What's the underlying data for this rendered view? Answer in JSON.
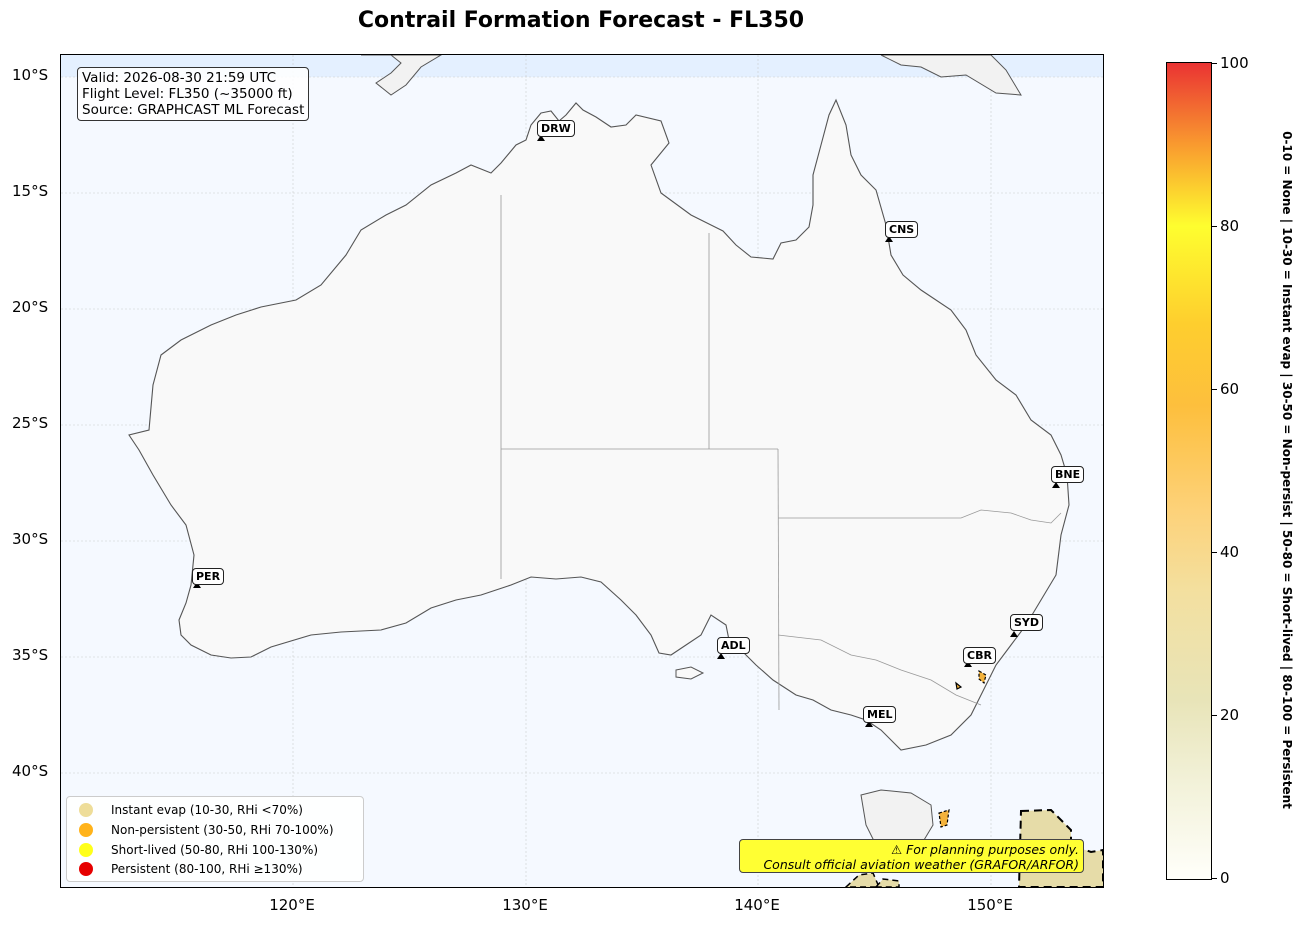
{
  "title": "Contrail Formation Forecast - FL350",
  "info": {
    "valid": "Valid: 2026-08-30 21:59 UTC",
    "flight_level": "Flight Level: FL350 (~35000 ft)",
    "source": "Source: GRAPHCAST ML Forecast"
  },
  "lat_labels": [
    "10°S",
    "15°S",
    "20°S",
    "25°S",
    "30°S",
    "35°S",
    "40°S"
  ],
  "lon_labels": [
    "120°E",
    "130°E",
    "140°E",
    "150°E"
  ],
  "stations": [
    "DRW",
    "CNS",
    "BNE",
    "PER",
    "SYD",
    "ADL",
    "CBR",
    "MEL"
  ],
  "legend": {
    "items": [
      {
        "label": "Instant evap (10-30, RHi <70%)",
        "color": "#eedd99"
      },
      {
        "label": "Non-persistent (30-50, RHi 70-100%)",
        "color": "#ffb31a"
      },
      {
        "label": "Short-lived (50-80, RHi 100-130%)",
        "color": "#ffff1a"
      },
      {
        "label": "Persistent (80-100, RHi ≥130%)",
        "color": "#e60000"
      }
    ]
  },
  "disclaimer": {
    "line1": "⚠ For planning purposes only.",
    "line2": "Consult official aviation weather (GRAFOR/ARFOR)"
  },
  "colorbar": {
    "ticks": [
      "0",
      "20",
      "40",
      "60",
      "80",
      "100"
    ],
    "caption": "0-10 = None  |  10-30 = Instant evap  |  30-50 = Non-persist  |  50-80 = Short-lived  |  80-100 = Persistent"
  },
  "colors": {
    "ocean": "#f5f9ff",
    "land": "#f9f9f9",
    "coast": "#555555"
  }
}
